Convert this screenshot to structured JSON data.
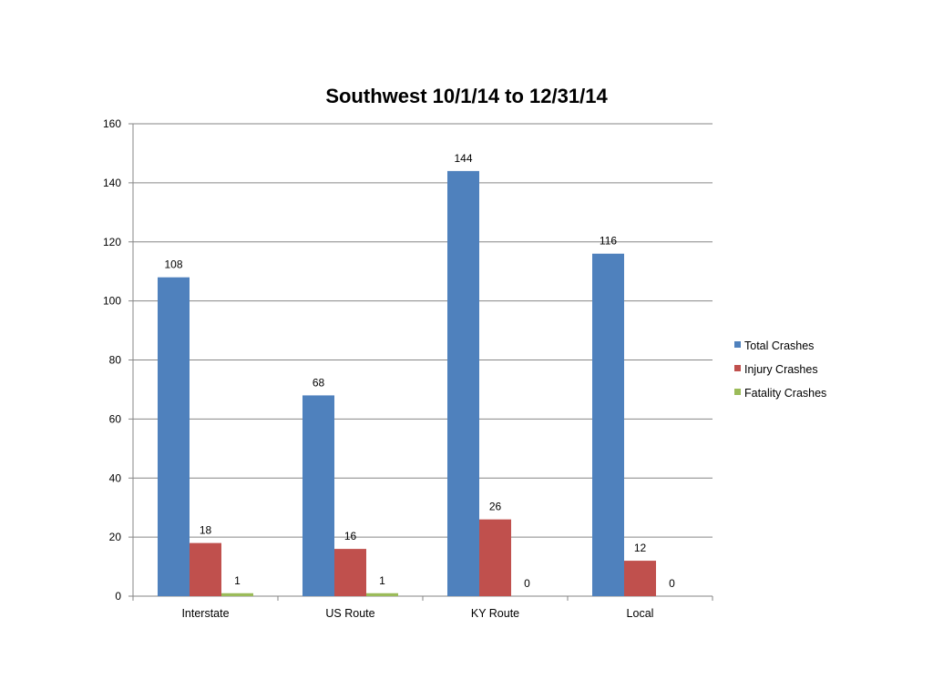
{
  "chart_data": {
    "type": "bar",
    "title": "Southwest 10/1/14 to 12/31/14",
    "xlabel": "",
    "ylabel": "",
    "categories": [
      "Interstate",
      "US Route",
      "KY Route",
      "Local"
    ],
    "series": [
      {
        "name": "Total Crashes",
        "color": "#4f81bd",
        "values": [
          108,
          68,
          144,
          116
        ]
      },
      {
        "name": "Injury Crashes",
        "color": "#c0504d",
        "values": [
          18,
          16,
          26,
          12
        ]
      },
      {
        "name": "Fatality Crashes",
        "color": "#9bbb59",
        "values": [
          1,
          1,
          0,
          0
        ]
      }
    ],
    "ylim": [
      0,
      160
    ],
    "yticks": [
      0,
      20,
      40,
      60,
      80,
      100,
      120,
      140,
      160
    ],
    "grid": true,
    "legend": "right",
    "data_labels": true
  }
}
